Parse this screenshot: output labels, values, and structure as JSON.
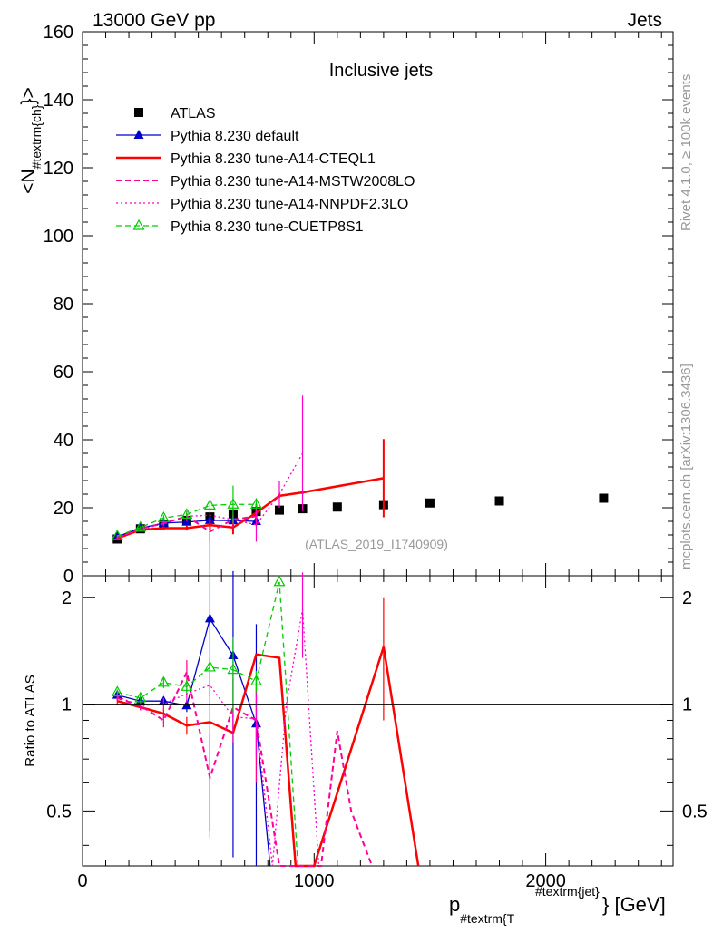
{
  "header": {
    "left": "13000 GeV pp",
    "right": "Jets"
  },
  "side_labels": {
    "rivet": "Rivet 4.1.0, ≥ 100k events",
    "mcplots": "mcplots.cern.ch [arXiv:1306.3436]"
  },
  "colors": {
    "atlas": "#000000",
    "default": "#0000cc",
    "cteql1": "#ff0000",
    "mstw": "#ff0099",
    "nnpdf": "#ff00cc",
    "cuetp": "#00cc00",
    "watermark": "#999999"
  },
  "chart_data": [
    {
      "type": "line",
      "panel": "main",
      "title": "Inclusive jets",
      "analysis_tag": "(ATLAS_2019_I1740909)",
      "xlabel": "p_{#textrm{T}}^{#textrm{jet}} [GeV]",
      "xlabel_parts": {
        "p": "p",
        "sub": "#textrm{T",
        "sup": "#textrm{jet}",
        "tail": "} [GeV]"
      },
      "ylabel_parts": {
        "lead": "<N",
        "sub": "#textrm{ch}",
        "tail": "}>"
      },
      "xlim": [
        0,
        2550
      ],
      "ylim": [
        0,
        160
      ],
      "y_ticks": [
        0,
        20,
        40,
        60,
        80,
        100,
        120,
        140,
        160
      ],
      "x_ticks": [
        0,
        1000,
        2000
      ],
      "legend_location": "top-left",
      "series": [
        {
          "name": "ATLAS",
          "style": "markers-square",
          "color": "#000000",
          "x": [
            150,
            250,
            350,
            450,
            550,
            650,
            750,
            850,
            950,
            1100,
            1300,
            1500,
            1800,
            2250
          ],
          "y": [
            10.8,
            13.8,
            15.2,
            16.3,
            17.3,
            18.2,
            18.9,
            19.3,
            19.7,
            20.2,
            20.9,
            21.4,
            22.0,
            22.8
          ]
        },
        {
          "name": "Pythia 8.230 default",
          "style": "solid-triangle",
          "color": "#0000cc",
          "x": [
            150,
            250,
            350,
            450,
            550,
            650,
            750
          ],
          "y": [
            11.5,
            14.0,
            15.5,
            15.8,
            16.3,
            16.2,
            16.0
          ],
          "err": [
            0.3,
            0.4,
            0.5,
            0.6,
            0.8,
            1.0,
            1.2
          ]
        },
        {
          "name": "Pythia 8.230 tune-A14-CTEQL1",
          "style": "solid-thick",
          "color": "#ff0000",
          "x": [
            150,
            250,
            350,
            450,
            550,
            650,
            750,
            850,
            950,
            1300
          ],
          "y": [
            11.0,
            13.5,
            14.0,
            14.0,
            14.9,
            14.2,
            18.5,
            23.5,
            24.5,
            28.7
          ],
          "err": [
            0.3,
            0.4,
            0.5,
            0.7,
            1.5,
            2.0,
            2.5,
            0.5,
            0.5,
            11.5
          ]
        },
        {
          "name": "Pythia 8.230 tune-A14-MSTW2008LO",
          "style": "dashed",
          "color": "#ff0099",
          "x": [
            150,
            250,
            350,
            450,
            550,
            650,
            750
          ],
          "y": [
            11.2,
            13.9,
            15.4,
            17.5,
            13.0,
            16.5,
            17.5
          ],
          "err": [
            0.3,
            0.5,
            0.6,
            1.5,
            3.0,
            2.5,
            3.0
          ]
        },
        {
          "name": "Pythia 8.230 tune-A14-NNPDF2.3LO",
          "style": "dotted",
          "color": "#ff00cc",
          "x": [
            150,
            250,
            350,
            450,
            550,
            650,
            750,
            850,
            950
          ],
          "y": [
            11.3,
            13.6,
            15.3,
            17.5,
            17.8,
            16.5,
            15.0,
            24.0,
            36.0
          ],
          "err": [
            0.3,
            0.5,
            0.6,
            1.0,
            1.5,
            1.5,
            5.0,
            4.0,
            17.0
          ]
        },
        {
          "name": "Pythia 8.230 tune-CUETP8S1",
          "style": "dashed-triangle-open",
          "color": "#00cc00",
          "x": [
            150,
            250,
            350,
            450,
            550,
            650,
            750
          ],
          "y": [
            11.7,
            14.2,
            17.0,
            18.0,
            20.7,
            21.0,
            21.0
          ],
          "err": [
            0.3,
            0.5,
            0.8,
            1.0,
            1.5,
            5.5,
            1.5
          ]
        }
      ]
    },
    {
      "type": "line",
      "panel": "ratio",
      "ylabel": "Ratio to ATLAS",
      "xlim": [
        0,
        2550
      ],
      "ylim": [
        0.35,
        2.3
      ],
      "y_tick_labels": [
        "0.5",
        "1",
        "2"
      ],
      "y_ticks": [
        0.5,
        1,
        2
      ],
      "x_ticks": [
        0,
        1000,
        2000
      ],
      "x_tick_labels": [
        "0",
        "1000",
        "2000"
      ],
      "series": [
        {
          "name": "Pythia 8.230 default",
          "color": "#0000cc",
          "x": [
            150,
            250,
            350,
            450,
            550,
            650,
            750,
            810
          ],
          "y": [
            1.06,
            1.02,
            1.02,
            0.99,
            1.74,
            1.37,
            0.88,
            0.35
          ],
          "err": [
            0.02,
            0.02,
            0.03,
            0.04,
            1.3,
            1.0,
            0.8,
            0.0
          ]
        },
        {
          "name": "Pythia 8.230 tune-A14-CTEQL1",
          "color": "#ff0000",
          "x": [
            150,
            250,
            350,
            450,
            550,
            650,
            750,
            850,
            920,
            1000,
            1300,
            1450
          ],
          "y": [
            1.02,
            0.98,
            0.94,
            0.87,
            0.89,
            0.83,
            1.38,
            1.35,
            0.35,
            0.35,
            1.45,
            0.35
          ],
          "err": [
            0.02,
            0.02,
            0.03,
            0.05,
            0.0,
            0.0,
            0.0,
            0.0,
            0.0,
            0.0,
            0.55,
            0.0
          ]
        },
        {
          "name": "Pythia 8.230 tune-A14-MSTW2008LO",
          "color": "#ff0099",
          "x": [
            150,
            250,
            350,
            450,
            550,
            650,
            750,
            850,
            950,
            1030,
            1100,
            1160,
            1250
          ],
          "y": [
            1.04,
            0.99,
            0.9,
            1.23,
            0.62,
            0.98,
            0.9,
            0.35,
            0.35,
            0.35,
            0.84,
            0.5,
            0.35
          ],
          "err": [
            0.02,
            0.03,
            0.04,
            0.1,
            0.2,
            0.2,
            0.3,
            0.0,
            0.0,
            0.0,
            0.0,
            0.0,
            0.0
          ]
        },
        {
          "name": "Pythia 8.230 tune-A14-NNPDF2.3LO",
          "color": "#ff00cc",
          "x": [
            150,
            250,
            350,
            450,
            550,
            650,
            750,
            820,
            880,
            950,
            1020
          ],
          "y": [
            1.05,
            0.99,
            1.0,
            1.07,
            1.13,
            0.92,
            0.91,
            0.35,
            1.0,
            1.85,
            0.35
          ],
          "err": [
            0.02,
            0.03,
            0.04,
            0.06,
            0.08,
            0.08,
            0.2,
            0.0,
            0.0,
            0.5,
            0.0
          ]
        },
        {
          "name": "Pythia 8.230 tune-CUETP8S1",
          "color": "#00cc00",
          "x": [
            150,
            250,
            350,
            450,
            550,
            650,
            750,
            850,
            930
          ],
          "y": [
            1.08,
            1.04,
            1.15,
            1.12,
            1.27,
            1.25,
            1.16,
            2.21,
            0.35
          ],
          "err": [
            0.02,
            0.03,
            0.04,
            0.05,
            0.08,
            0.3,
            0.08,
            0.0,
            0.0
          ]
        }
      ]
    }
  ]
}
